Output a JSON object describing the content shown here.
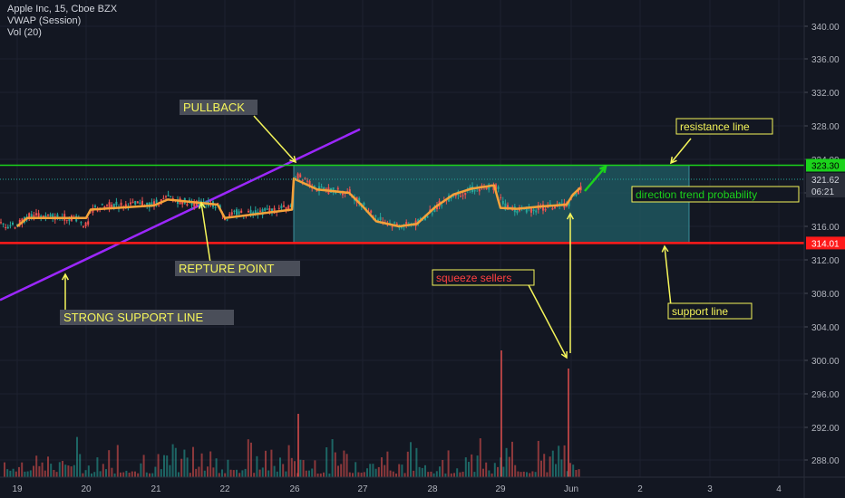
{
  "header": {
    "symbol_line": "Apple Inc, 15, Cboe BZX",
    "vwap_label": "VWAP (Session)",
    "vol_label": "Vol (20)"
  },
  "chart_data": {
    "type": "candlestick",
    "y_ticks": [
      340,
      336,
      332,
      328,
      324,
      320,
      316,
      312,
      308,
      304,
      300,
      296,
      292,
      288
    ],
    "y_tick_labels": [
      "340.00",
      "336.00",
      "332.00",
      "328.00",
      "324.00",
      "320.00",
      "316.00",
      "312.00",
      "308.00",
      "304.00",
      "300.00",
      "296.00",
      "292.00",
      "288.00"
    ],
    "ylim": [
      286.5,
      342
    ],
    "x_ticks": [
      {
        "label": "19",
        "x": 19
      },
      {
        "label": "20",
        "x": 95
      },
      {
        "label": "21",
        "x": 172
      },
      {
        "label": "22",
        "x": 248
      },
      {
        "label": "26",
        "x": 325
      },
      {
        "label": "27",
        "x": 400
      },
      {
        "label": "28",
        "x": 477
      },
      {
        "label": "29",
        "x": 552
      },
      {
        "label": "Jun",
        "x": 630
      },
      {
        "label": "2",
        "x": 706
      },
      {
        "label": "3",
        "x": 783
      },
      {
        "label": "4",
        "x": 859
      }
    ],
    "price_path": [
      [
        19,
        316.2
      ],
      [
        30,
        317.2
      ],
      [
        50,
        317.2
      ],
      [
        70,
        317.1
      ],
      [
        85,
        317.0
      ],
      [
        95,
        315.9
      ],
      [
        100,
        318.0
      ],
      [
        120,
        318.5
      ],
      [
        150,
        318.6
      ],
      [
        170,
        318.7
      ],
      [
        185,
        319.4
      ],
      [
        200,
        319.0
      ],
      [
        225,
        318.7
      ],
      [
        240,
        318.6
      ],
      [
        248,
        316.9
      ],
      [
        260,
        317.6
      ],
      [
        290,
        317.8
      ],
      [
        310,
        318.1
      ],
      [
        320,
        318.2
      ],
      [
        324,
        322.0
      ],
      [
        335,
        321.8
      ],
      [
        350,
        320.4
      ],
      [
        365,
        320.3
      ],
      [
        385,
        320.0
      ],
      [
        400,
        318.5
      ],
      [
        415,
        317.0
      ],
      [
        430,
        316.3
      ],
      [
        445,
        316.1
      ],
      [
        460,
        316.4
      ],
      [
        470,
        317.3
      ],
      [
        485,
        318.8
      ],
      [
        500,
        319.8
      ],
      [
        520,
        320.4
      ],
      [
        540,
        320.7
      ],
      [
        548,
        320.8
      ],
      [
        555,
        318.4
      ],
      [
        570,
        318.0
      ],
      [
        590,
        318.1
      ],
      [
        610,
        318.4
      ],
      [
        625,
        318.6
      ],
      [
        632,
        319.5
      ],
      [
        640,
        320.6
      ]
    ],
    "vwap": [
      [
        19,
        316.0
      ],
      [
        30,
        317.0
      ],
      [
        95,
        317.0
      ],
      [
        100,
        318.0
      ],
      [
        170,
        318.5
      ],
      [
        185,
        319.2
      ],
      [
        240,
        318.6
      ],
      [
        248,
        317.0
      ],
      [
        322,
        318.0
      ],
      [
        324,
        321.7
      ],
      [
        350,
        320.4
      ],
      [
        385,
        320.0
      ],
      [
        400,
        318.4
      ],
      [
        415,
        316.6
      ],
      [
        440,
        316.0
      ],
      [
        460,
        316.3
      ],
      [
        480,
        318.3
      ],
      [
        500,
        319.8
      ],
      [
        520,
        320.5
      ],
      [
        545,
        320.9
      ],
      [
        552,
        318.2
      ],
      [
        570,
        318.1
      ],
      [
        600,
        318.4
      ],
      [
        625,
        318.6
      ],
      [
        632,
        319.8
      ],
      [
        640,
        320.6
      ]
    ],
    "volume_spikes": [
      {
        "x": 328,
        "h": 70
      },
      {
        "x": 552,
        "h": 140
      },
      {
        "x": 626,
        "h": 120
      }
    ],
    "levels": {
      "resistance": 323.3,
      "support": 314.01,
      "last_price": 321.62,
      "resistance_label": "323.30",
      "support_label": "314.01",
      "last_price_label": "321.62",
      "countdown_label": "06:21"
    },
    "range_box": {
      "x1": 324,
      "x2": 760,
      "top": 323.3,
      "bottom": 314.01
    },
    "trend_line": {
      "from": [
        0,
        307.2
      ],
      "to": [
        397,
        327.6
      ]
    },
    "annotations": {
      "pullback": "PULLBACK",
      "rupture_point": "REPTURE POINT",
      "strong_support": "STRONG SUPPORT LINE",
      "resistance_line": "resistance line",
      "direction_trend": "direction trend probability",
      "squeeze_sellers": "squeeze sellers",
      "support_line": "support line"
    },
    "colors": {
      "background": "#131722",
      "up": "#26a69a",
      "down": "#ef5350",
      "vwap": "#f4a23a",
      "resistance": "#1bd21b",
      "support": "#ff1a1a",
      "trend": "#9c27ff",
      "box": "#1f5a63",
      "arrow_yellow": "#f5f55a",
      "arrow_green": "#1bd21b"
    }
  }
}
